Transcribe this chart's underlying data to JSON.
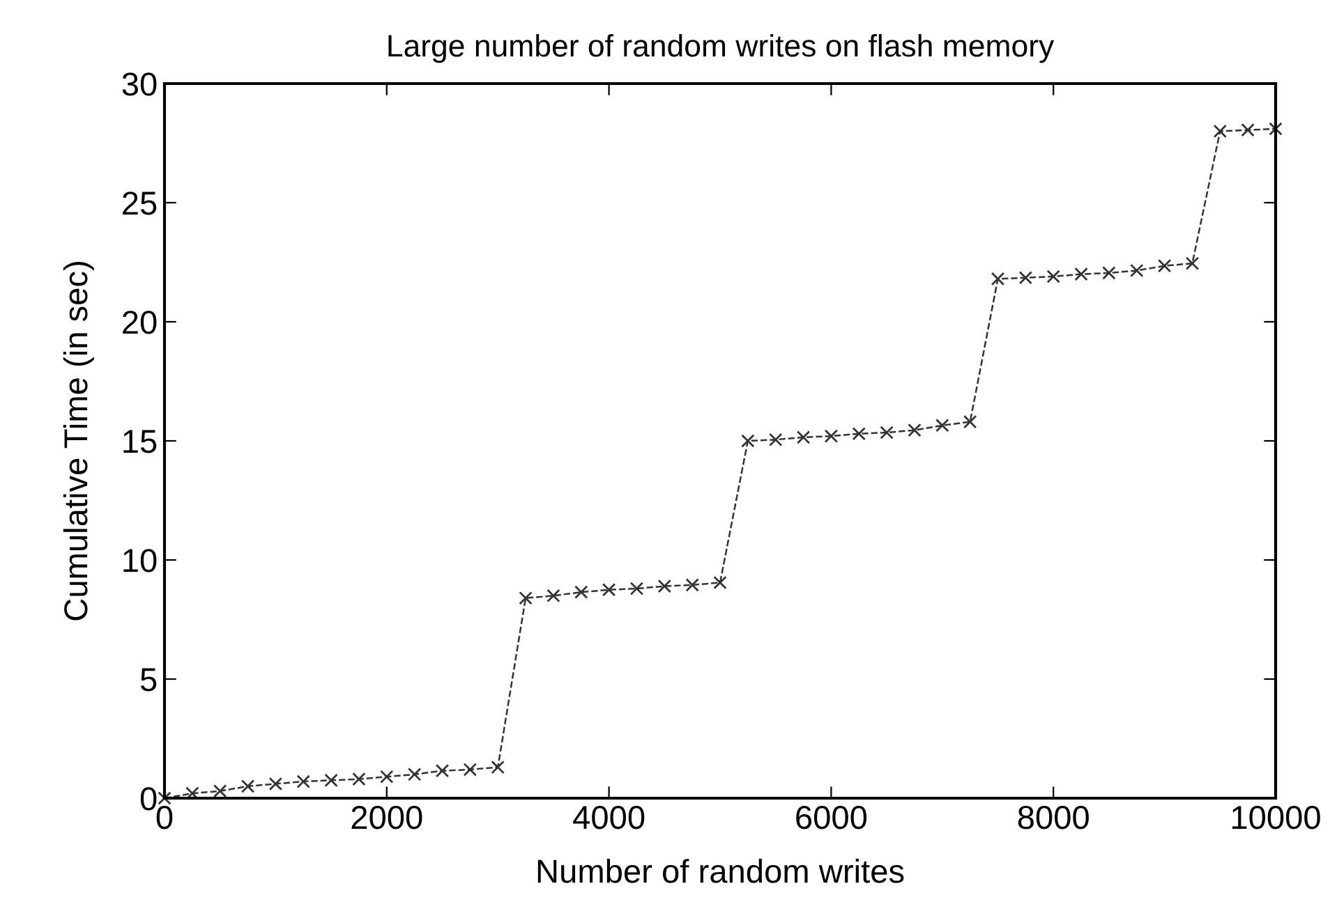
{
  "chart_data": {
    "type": "line",
    "title": "Large number of random writes on flash memory",
    "xlabel": "Number of random writes",
    "ylabel": "Cumulative Time (in sec)",
    "x": [
      0,
      250,
      500,
      750,
      1000,
      1250,
      1500,
      1750,
      2000,
      2250,
      2500,
      2750,
      3000,
      3250,
      3500,
      3750,
      4000,
      4250,
      4500,
      4750,
      5000,
      5250,
      5500,
      5750,
      6000,
      6250,
      6500,
      6750,
      7000,
      7250,
      7500,
      7750,
      8000,
      8250,
      8500,
      8750,
      9000,
      9250,
      9500,
      9750,
      10000
    ],
    "series": [
      {
        "color": "#333333",
        "values": [
          0,
          0.2,
          0.3,
          0.5,
          0.6,
          0.7,
          0.75,
          0.8,
          0.9,
          1.0,
          1.15,
          1.2,
          1.3,
          8.4,
          8.5,
          8.65,
          8.75,
          8.8,
          8.9,
          8.95,
          9.05,
          15.0,
          15.05,
          15.15,
          15.2,
          15.3,
          15.35,
          15.45,
          15.65,
          15.8,
          21.8,
          21.85,
          21.9,
          22.0,
          22.05,
          22.15,
          22.35,
          22.45,
          28.0,
          28.05,
          28.1
        ]
      }
    ],
    "xlim": [
      0,
      10000
    ],
    "xticks": [
      0,
      2000,
      4000,
      6000,
      8000,
      10000
    ],
    "ylim": [
      0,
      30
    ],
    "yticks": [
      0,
      5,
      10,
      15,
      20,
      25,
      30
    ],
    "marker": "cross",
    "line_style": "dashed",
    "grid": false,
    "legend": false
  }
}
